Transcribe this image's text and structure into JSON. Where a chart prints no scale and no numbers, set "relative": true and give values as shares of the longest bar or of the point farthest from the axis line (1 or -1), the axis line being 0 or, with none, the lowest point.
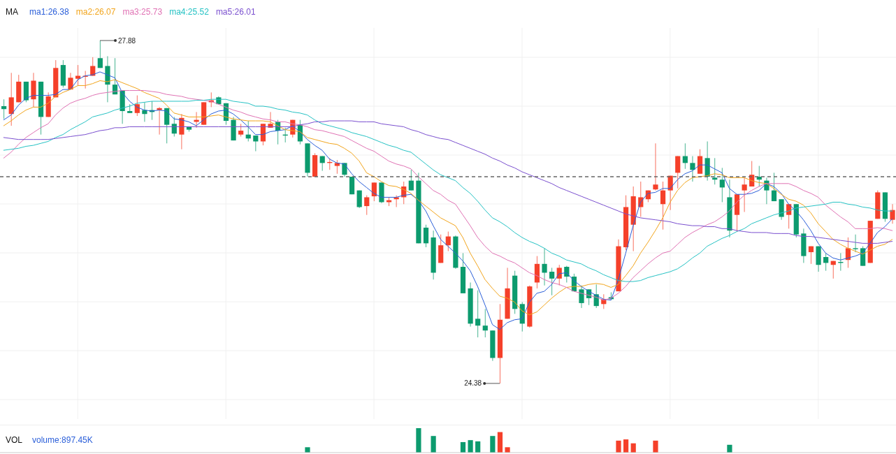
{
  "chart_data": [
    {
      "type": "candlestick",
      "legend_title": "MA",
      "legend": "top left",
      "grid": true,
      "tick_labels": false,
      "categories": [
        null,
        null,
        null,
        null,
        null,
        null,
        null,
        null,
        null,
        null,
        null,
        null,
        null,
        null,
        null,
        null,
        null,
        null,
        null,
        null,
        null,
        null,
        null,
        null,
        null,
        null,
        null,
        null,
        null,
        null,
        null,
        null,
        null,
        null,
        null,
        null,
        null,
        null,
        null,
        null,
        null,
        null,
        null,
        null,
        null,
        null,
        null,
        null,
        null,
        null,
        null,
        null,
        null,
        null,
        null,
        null,
        null,
        null,
        null,
        null,
        null,
        null,
        null,
        null,
        null,
        null,
        null,
        null,
        null,
        null,
        null,
        null,
        null,
        null,
        null,
        null,
        null,
        null,
        null,
        null,
        null,
        null,
        null,
        null,
        null,
        null,
        null,
        null,
        null,
        null,
        null,
        null,
        null,
        null,
        null,
        null,
        null,
        null,
        null,
        null,
        null,
        null,
        null,
        null,
        null,
        null,
        null,
        null,
        null,
        null,
        null,
        null,
        null,
        null,
        null,
        null,
        null,
        null,
        null,
        null,
        null
      ],
      "ohlc": [
        [
          27.21,
          27.28,
          27.08,
          27.18
        ],
        [
          27.13,
          27.55,
          27.01,
          27.3
        ],
        [
          27.25,
          27.53,
          27.25,
          27.46
        ],
        [
          27.46,
          27.46,
          27.25,
          27.27
        ],
        [
          27.28,
          27.55,
          27.2,
          27.47
        ],
        [
          27.46,
          27.46,
          26.92,
          27.1
        ],
        [
          27.1,
          27.35,
          27.1,
          27.31
        ],
        [
          27.3,
          27.68,
          27.3,
          27.6
        ],
        [
          27.63,
          27.68,
          27.4,
          27.42
        ],
        [
          27.38,
          27.55,
          27.38,
          27.5
        ],
        [
          27.49,
          27.63,
          27.42,
          27.52
        ],
        [
          27.51,
          27.57,
          27.39,
          27.52
        ],
        [
          27.52,
          27.71,
          27.52,
          27.62
        ],
        [
          27.7,
          27.88,
          27.6,
          27.6
        ],
        [
          27.62,
          27.72,
          27.25,
          27.43
        ],
        [
          27.43,
          27.7,
          27.33,
          27.33
        ],
        [
          27.37,
          27.37,
          27.03,
          27.16
        ],
        [
          27.16,
          27.23,
          27.14,
          27.14
        ],
        [
          27.14,
          27.32,
          27.11,
          27.23
        ],
        [
          27.17,
          27.25,
          27.05,
          27.13
        ],
        [
          27.17,
          27.26,
          27.07,
          27.15
        ],
        [
          27.17,
          27.2,
          26.92,
          27.19
        ],
        [
          27.19,
          27.19,
          26.83,
          27.02
        ],
        [
          27.03,
          27.1,
          26.9,
          26.93
        ],
        [
          26.92,
          27.13,
          26.77,
          27.09
        ],
        [
          27.0,
          27.0,
          26.95,
          26.97
        ],
        [
          27.05,
          27.15,
          26.99,
          27.07
        ],
        [
          27.02,
          27.25,
          27.02,
          27.25
        ],
        [
          27.25,
          27.35,
          27.2,
          27.27
        ],
        [
          27.3,
          27.31,
          27.23,
          27.23
        ],
        [
          27.24,
          27.24,
          27.02,
          27.06
        ],
        [
          27.07,
          27.1,
          26.86,
          26.86
        ],
        [
          26.92,
          27.03,
          26.9,
          26.96
        ],
        [
          26.92,
          27.06,
          26.85,
          26.88
        ],
        [
          26.91,
          26.91,
          26.75,
          26.85
        ],
        [
          26.85,
          27.03,
          26.81,
          27.03
        ],
        [
          26.99,
          27.15,
          26.99,
          27.03
        ],
        [
          27.05,
          27.07,
          26.82,
          26.96
        ],
        [
          26.92,
          26.99,
          26.84,
          26.91
        ],
        [
          26.92,
          27.07,
          26.89,
          27.07
        ],
        [
          27.02,
          27.07,
          26.82,
          26.85
        ],
        [
          26.83,
          26.83,
          26.49,
          26.53
        ],
        [
          26.49,
          26.73,
          26.49,
          26.71
        ],
        [
          26.7,
          26.7,
          26.55,
          26.63
        ],
        [
          26.63,
          26.68,
          26.56,
          26.64
        ],
        [
          26.6,
          26.66,
          26.52,
          26.63
        ],
        [
          26.63,
          26.63,
          26.49,
          26.51
        ],
        [
          26.49,
          26.49,
          26.31,
          26.31
        ],
        [
          26.35,
          26.35,
          26.17,
          26.18
        ],
        [
          26.19,
          26.3,
          26.1,
          26.28
        ],
        [
          26.29,
          26.43,
          26.24,
          26.43
        ],
        [
          26.43,
          26.43,
          26.22,
          26.23
        ],
        [
          26.23,
          26.28,
          26.19,
          26.25
        ],
        [
          26.26,
          26.3,
          26.18,
          26.28
        ],
        [
          26.28,
          26.44,
          26.21,
          26.39
        ],
        [
          26.45,
          26.56,
          26.35,
          26.35
        ],
        [
          26.45,
          26.53,
          25.81,
          25.81
        ],
        [
          25.97,
          26.0,
          25.77,
          25.81
        ],
        [
          25.87,
          25.94,
          25.44,
          25.51
        ],
        [
          25.61,
          25.9,
          25.61,
          25.79
        ],
        [
          25.79,
          25.93,
          25.73,
          25.88
        ],
        [
          25.88,
          25.89,
          25.55,
          25.56
        ],
        [
          25.57,
          25.71,
          25.3,
          25.3
        ],
        [
          25.35,
          25.41,
          24.96,
          24.99
        ],
        [
          25.04,
          25.33,
          24.85,
          24.97
        ],
        [
          24.97,
          25.14,
          24.85,
          24.92
        ],
        [
          24.92,
          24.92,
          24.61,
          24.64
        ],
        [
          24.64,
          25.19,
          24.38,
          25.03
        ],
        [
          25.04,
          25.56,
          25.04,
          25.35
        ],
        [
          25.48,
          25.53,
          25.09,
          25.14
        ],
        [
          25.19,
          25.21,
          24.91,
          24.99
        ],
        [
          24.96,
          25.38,
          24.95,
          25.37
        ],
        [
          25.41,
          25.68,
          25.35,
          25.6
        ],
        [
          25.6,
          25.76,
          25.38,
          25.51
        ],
        [
          25.52,
          25.56,
          25.28,
          25.45
        ],
        [
          25.45,
          25.59,
          25.38,
          25.56
        ],
        [
          25.57,
          25.58,
          25.41,
          25.47
        ],
        [
          25.47,
          25.5,
          25.32,
          25.32
        ],
        [
          25.34,
          25.38,
          25.15,
          25.2
        ],
        [
          25.34,
          25.34,
          25.18,
          25.25
        ],
        [
          25.29,
          25.39,
          25.15,
          25.17
        ],
        [
          25.19,
          25.29,
          25.14,
          25.24
        ],
        [
          25.26,
          25.31,
          25.23,
          25.24
        ],
        [
          25.32,
          25.85,
          25.32,
          25.78
        ],
        [
          25.77,
          26.3,
          25.74,
          26.18
        ],
        [
          26.0,
          26.39,
          25.73,
          26.29
        ],
        [
          26.18,
          26.44,
          26.08,
          26.28
        ],
        [
          26.26,
          26.35,
          26.23,
          26.35
        ],
        [
          26.36,
          26.83,
          26.35,
          26.41
        ],
        [
          26.21,
          26.44,
          25.95,
          26.35
        ],
        [
          26.35,
          26.5,
          26.15,
          26.5
        ],
        [
          26.53,
          26.7,
          26.37,
          26.7
        ],
        [
          26.7,
          26.83,
          26.57,
          26.63
        ],
        [
          26.63,
          26.7,
          26.44,
          26.56
        ],
        [
          26.52,
          26.77,
          26.52,
          26.7
        ],
        [
          26.68,
          26.85,
          26.45,
          26.49
        ],
        [
          26.48,
          26.68,
          26.41,
          26.46
        ],
        [
          26.46,
          26.58,
          26.23,
          26.38
        ],
        [
          26.28,
          26.46,
          25.87,
          25.94
        ],
        [
          26.1,
          26.31,
          25.93,
          26.31
        ],
        [
          26.35,
          26.48,
          26.13,
          26.41
        ],
        [
          26.39,
          26.65,
          26.39,
          26.51
        ],
        [
          26.49,
          26.6,
          26.39,
          26.46
        ],
        [
          26.45,
          26.48,
          26.21,
          26.35
        ],
        [
          26.35,
          26.53,
          26.24,
          26.24
        ],
        [
          26.26,
          26.26,
          26.05,
          26.08
        ],
        [
          26.1,
          26.21,
          25.96,
          26.21
        ],
        [
          26.21,
          26.21,
          25.87,
          25.9
        ],
        [
          25.91,
          25.96,
          25.61,
          25.68
        ],
        [
          25.72,
          25.78,
          25.6,
          25.78
        ],
        [
          25.78,
          25.78,
          25.52,
          25.59
        ],
        [
          25.67,
          25.71,
          25.53,
          25.61
        ],
        [
          25.59,
          25.63,
          25.45,
          25.63
        ],
        [
          25.62,
          25.71,
          25.53,
          25.61
        ],
        [
          25.64,
          25.87,
          25.56,
          25.76
        ],
        [
          25.76,
          25.9,
          25.72,
          25.75
        ],
        [
          25.76,
          25.78,
          25.58,
          25.58
        ],
        [
          25.61,
          26.04,
          25.61,
          26.04
        ],
        [
          26.06,
          26.35,
          26.06,
          26.33
        ],
        [
          26.33,
          26.33,
          26.03,
          26.06
        ],
        [
          26.05,
          26.21,
          26.01,
          26.15
        ]
      ],
      "colors": [
        "#0c9b6e",
        "#f5402a",
        "#f5402a",
        "#0c9b6e",
        "#f5402a",
        "#0c9b6e",
        "#f5402a",
        "#f5402a",
        "#0c9b6e",
        "#f5402a",
        "#f5402a",
        "#f5402a",
        "#f5402a",
        "#0c9b6e",
        "#0c9b6e",
        "#0c9b6e",
        "#0c9b6e",
        "#0c9b6e",
        "#f5402a",
        "#0c9b6e",
        "#0c9b6e",
        "#f5402a",
        "#0c9b6e",
        "#0c9b6e",
        "#f5402a",
        "#0c9b6e",
        "#f5402a",
        "#f5402a",
        "#f5402a",
        "#0c9b6e",
        "#0c9b6e",
        "#0c9b6e",
        "#f5402a",
        "#0c9b6e",
        "#0c9b6e",
        "#f5402a",
        "#f5402a",
        "#0c9b6e",
        "#0c9b6e",
        "#f5402a",
        "#0c9b6e",
        "#0c9b6e",
        "#f5402a",
        "#0c9b6e",
        "#f5402a",
        "#f5402a",
        "#0c9b6e",
        "#0c9b6e",
        "#0c9b6e",
        "#f5402a",
        "#f5402a",
        "#0c9b6e",
        "#f5402a",
        "#f5402a",
        "#f5402a",
        "#0c9b6e",
        "#0c9b6e",
        "#0c9b6e",
        "#0c9b6e",
        "#f5402a",
        "#f5402a",
        "#0c9b6e",
        "#0c9b6e",
        "#0c9b6e",
        "#0c9b6e",
        "#0c9b6e",
        "#0c9b6e",
        "#f5402a",
        "#f5402a",
        "#0c9b6e",
        "#0c9b6e",
        "#f5402a",
        "#f5402a",
        "#0c9b6e",
        "#0c9b6e",
        "#f5402a",
        "#0c9b6e",
        "#0c9b6e",
        "#0c9b6e",
        "#0c9b6e",
        "#0c9b6e",
        "#f5402a",
        "#0c9b6e",
        "#f5402a",
        "#f5402a",
        "#f5402a",
        "#f5402a",
        "#f5402a",
        "#f5402a",
        "#f5402a",
        "#f5402a",
        "#f5402a",
        "#0c9b6e",
        "#0c9b6e",
        "#f5402a",
        "#0c9b6e",
        "#0c9b6e",
        "#0c9b6e",
        "#0c9b6e",
        "#f5402a",
        "#f5402a",
        "#f5402a",
        "#0c9b6e",
        "#0c9b6e",
        "#0c9b6e",
        "#0c9b6e",
        "#f5402a",
        "#0c9b6e",
        "#0c9b6e",
        "#f5402a",
        "#0c9b6e",
        "#0c9b6e",
        "#f5402a",
        "#0c9b6e",
        "#f5402a",
        "#0c9b6e",
        "#0c9b6e",
        "#f5402a",
        "#f5402a",
        "#0c9b6e",
        "#f5402a"
      ],
      "series": [
        {
          "type": "line",
          "name": "ma1:26.38",
          "color": "#2b5fd9",
          "values": [
            27.07,
            27.12,
            27.22,
            27.29,
            27.32,
            27.32,
            27.32,
            27.33,
            27.38,
            27.38,
            27.48,
            27.52,
            27.53,
            27.56,
            27.53,
            27.5,
            27.35,
            27.26,
            27.2,
            27.17,
            27.16,
            27.17,
            27.16,
            27.08,
            27.07,
            27.05,
            27.01,
            27.07,
            27.13,
            27.16,
            27.17,
            27.13,
            27.07,
            27.0,
            26.92,
            26.92,
            26.95,
            26.96,
            26.97,
            27.01,
            26.95,
            26.87,
            26.81,
            26.76,
            26.67,
            26.63,
            26.62,
            26.52,
            26.44,
            26.38,
            26.32,
            26.28,
            26.28,
            26.28,
            26.3,
            26.31,
            26.25,
            26.14,
            25.99,
            25.85,
            25.78,
            25.71,
            25.63,
            25.53,
            25.37,
            25.18,
            24.98,
            24.93,
            25.0,
            25.03,
            25.04,
            25.21,
            25.3,
            25.32,
            25.39,
            25.5,
            25.51,
            25.43,
            25.37,
            25.32,
            25.28,
            25.24,
            25.23,
            25.44,
            25.71,
            25.99,
            26.23,
            26.32,
            26.33,
            26.37,
            26.37,
            26.46,
            26.52,
            26.55,
            26.61,
            26.61,
            26.57,
            26.53,
            26.37,
            26.31,
            26.31,
            26.32,
            26.35,
            26.42,
            26.39,
            26.32,
            26.21,
            26.14,
            26.05,
            25.94,
            25.81,
            25.71,
            25.66,
            25.64,
            25.66,
            25.68,
            25.71,
            25.81,
            25.92,
            25.98,
            26.06
          ]
        },
        {
          "type": "line",
          "name": "ma2:26.07",
          "color": "#f2a51c",
          "values": [
            27.01,
            27.06,
            27.12,
            27.17,
            27.2,
            27.2,
            27.24,
            27.31,
            27.35,
            27.38,
            27.42,
            27.42,
            27.44,
            27.47,
            27.46,
            27.48,
            27.45,
            27.42,
            27.39,
            27.35,
            27.32,
            27.29,
            27.22,
            27.14,
            27.12,
            27.1,
            27.1,
            27.1,
            27.11,
            27.12,
            27.1,
            27.08,
            27.07,
            27.06,
            27.06,
            27.06,
            27.05,
            27.01,
            26.97,
            26.96,
            26.95,
            26.89,
            26.87,
            26.85,
            26.83,
            26.82,
            26.78,
            26.73,
            26.65,
            26.53,
            26.49,
            26.44,
            26.4,
            26.39,
            26.36,
            26.32,
            26.25,
            26.19,
            26.13,
            26.07,
            26.03,
            25.99,
            25.87,
            25.71,
            25.58,
            25.44,
            25.35,
            25.27,
            25.25,
            25.21,
            25.12,
            25.08,
            25.11,
            25.18,
            25.25,
            25.31,
            25.36,
            25.37,
            25.37,
            25.39,
            25.4,
            25.39,
            25.36,
            25.39,
            25.48,
            25.58,
            25.71,
            25.82,
            25.94,
            26.07,
            26.23,
            26.35,
            26.43,
            26.48,
            26.49,
            26.5,
            26.52,
            26.51,
            26.48,
            26.48,
            26.48,
            26.45,
            26.43,
            26.42,
            26.37,
            26.31,
            26.26,
            26.24,
            26.2,
            26.12,
            26.01,
            25.93,
            25.85,
            25.8,
            25.76,
            25.73,
            25.7,
            25.74,
            25.78,
            25.8,
            25.85
          ]
        },
        {
          "type": "line",
          "name": "ma3:25.73",
          "color": "#e072b4",
          "values": [
            26.68,
            26.74,
            26.82,
            26.89,
            26.94,
            26.99,
            27.03,
            27.12,
            27.19,
            27.24,
            27.27,
            27.29,
            27.32,
            27.34,
            27.35,
            27.36,
            27.37,
            27.37,
            27.37,
            27.37,
            27.36,
            27.35,
            27.33,
            27.32,
            27.31,
            27.29,
            27.28,
            27.27,
            27.26,
            27.23,
            27.2,
            27.17,
            27.15,
            27.12,
            27.1,
            27.08,
            27.07,
            27.05,
            27.05,
            27.03,
            27.02,
            27.0,
            26.97,
            26.96,
            26.94,
            26.92,
            26.9,
            26.86,
            26.82,
            26.78,
            26.75,
            26.7,
            26.65,
            26.62,
            26.6,
            26.57,
            26.49,
            26.42,
            26.35,
            26.31,
            26.25,
            26.21,
            26.1,
            25.99,
            25.87,
            25.78,
            25.71,
            25.68,
            25.64,
            25.61,
            25.56,
            25.51,
            25.48,
            25.44,
            25.41,
            25.39,
            25.36,
            25.32,
            25.3,
            25.28,
            25.26,
            25.23,
            25.25,
            25.3,
            25.37,
            25.46,
            25.53,
            25.6,
            25.66,
            25.71,
            25.73,
            25.8,
            25.87,
            25.92,
            25.96,
            26.0,
            26.03,
            26.08,
            26.14,
            26.23,
            26.3,
            26.35,
            26.39,
            26.42,
            26.42,
            26.42,
            26.42,
            26.39,
            26.35,
            26.32,
            26.28,
            26.2,
            26.14,
            26.08,
            26.03,
            25.96,
            25.96,
            25.96,
            25.97,
            25.96,
            25.94
          ]
        },
        {
          "type": "line",
          "name": "ma4:25.52",
          "color": "#25c2c4",
          "values": [
            26.76,
            26.77,
            26.78,
            26.8,
            26.81,
            26.83,
            26.85,
            26.89,
            26.92,
            26.97,
            27.01,
            27.05,
            27.1,
            27.12,
            27.14,
            27.17,
            27.19,
            27.21,
            27.24,
            27.25,
            27.26,
            27.26,
            27.26,
            27.26,
            27.26,
            27.26,
            27.27,
            27.27,
            27.28,
            27.28,
            27.28,
            27.26,
            27.25,
            27.24,
            27.21,
            27.21,
            27.2,
            27.18,
            27.17,
            27.15,
            27.14,
            27.12,
            27.07,
            27.03,
            27.01,
            26.99,
            26.97,
            26.94,
            26.92,
            26.9,
            26.87,
            26.84,
            26.81,
            26.79,
            26.76,
            26.74,
            26.68,
            26.62,
            26.56,
            26.51,
            26.48,
            26.45,
            26.38,
            26.32,
            26.24,
            26.15,
            26.07,
            26.03,
            25.98,
            25.92,
            25.87,
            25.83,
            25.8,
            25.76,
            25.71,
            25.68,
            25.64,
            25.62,
            25.6,
            25.56,
            25.53,
            25.49,
            25.46,
            25.43,
            25.42,
            25.42,
            25.43,
            25.46,
            25.48,
            25.5,
            25.52,
            25.55,
            25.6,
            25.66,
            25.71,
            25.78,
            25.82,
            25.86,
            25.89,
            25.93,
            25.96,
            26.01,
            26.04,
            26.07,
            26.1,
            26.12,
            26.14,
            26.17,
            26.18,
            26.19,
            26.2,
            26.21,
            26.23,
            26.23,
            26.21,
            26.2,
            26.18,
            26.17,
            26.15,
            26.14,
            26.14
          ]
        },
        {
          "type": "line",
          "name": "ma5:26.01",
          "color": "#7a4fcf",
          "values": [
            26.89,
            26.88,
            26.87,
            26.87,
            26.87,
            26.87,
            26.87,
            26.88,
            26.89,
            26.9,
            26.91,
            26.92,
            26.94,
            26.96,
            26.97,
            26.99,
            26.99,
            27.0,
            27.0,
            27.0,
            27.0,
            27.0,
            27.0,
            27.0,
            27.0,
            27.0,
            27.0,
            27.0,
            27.0,
            27.0,
            27.0,
            27.0,
            27.0,
            27.0,
            27.0,
            27.0,
            27.0,
            27.0,
            27.0,
            27.0,
            27.02,
            27.03,
            27.05,
            27.05,
            27.06,
            27.06,
            27.06,
            27.06,
            27.05,
            27.05,
            27.05,
            27.03,
            27.02,
            27.01,
            27.0,
            26.97,
            26.95,
            26.92,
            26.9,
            26.88,
            26.87,
            26.84,
            26.81,
            26.78,
            26.75,
            26.72,
            26.68,
            26.65,
            26.61,
            26.58,
            26.54,
            26.51,
            26.48,
            26.45,
            26.42,
            26.38,
            26.35,
            26.32,
            26.29,
            26.26,
            26.23,
            26.2,
            26.17,
            26.14,
            26.11,
            26.09,
            26.07,
            26.06,
            26.05,
            26.04,
            26.03,
            26.01,
            26.0,
            25.99,
            25.99,
            25.98,
            25.98,
            25.96,
            25.96,
            25.94,
            25.93,
            25.92,
            25.92,
            25.92,
            25.91,
            25.91,
            25.91,
            25.89,
            25.88,
            25.88,
            25.87,
            25.86,
            25.85,
            25.84,
            25.83,
            25.82,
            25.81,
            25.81,
            25.81,
            25.82,
            25.83
          ]
        }
      ],
      "ref_lines": [
        {
          "axis": "y",
          "value": 26.49,
          "line_style": "dashed",
          "color": "#666666"
        }
      ],
      "annotations": [
        "27.88",
        "24.38"
      ]
    },
    {
      "type": "bar",
      "title": "VOL",
      "relative": true,
      "tick_labels": false,
      "categories": [
        null,
        null,
        null,
        null,
        null,
        null,
        null,
        null,
        null,
        null,
        null,
        null,
        null,
        null,
        null,
        null,
        null,
        null,
        null,
        null,
        null,
        null,
        null,
        null,
        null,
        null,
        null,
        null,
        null,
        null,
        null,
        null,
        null,
        null,
        null,
        null,
        null,
        null,
        null,
        null,
        null,
        null,
        null,
        null,
        null,
        null,
        null,
        null,
        null,
        null,
        null,
        null,
        null,
        null,
        null,
        null,
        null,
        null,
        null,
        null,
        null,
        null,
        null,
        null,
        null,
        null,
        null,
        null,
        null,
        null,
        null,
        null,
        null,
        null,
        null,
        null,
        null,
        null,
        null,
        null,
        null,
        null,
        null,
        null,
        null,
        null,
        null,
        null,
        null,
        null,
        null,
        null,
        null,
        null,
        null,
        null,
        null,
        null,
        null,
        null,
        null,
        null,
        null,
        null,
        null,
        null,
        null,
        null,
        null,
        null,
        null,
        null,
        null,
        null,
        null,
        null,
        null,
        null,
        null,
        null,
        null
      ],
      "series": [
        {
          "name": "volume:897.45K",
          "values": [
            null,
            null,
            null,
            null,
            null,
            null,
            null,
            null,
            null,
            null,
            null,
            null,
            null,
            null,
            null,
            null,
            null,
            null,
            null,
            null,
            null,
            null,
            null,
            null,
            null,
            null,
            null,
            null,
            null,
            null,
            null,
            null,
            null,
            null,
            null,
            null,
            null,
            null,
            null,
            null,
            null,
            0.22,
            null,
            null,
            null,
            null,
            null,
            null,
            null,
            null,
            null,
            null,
            null,
            null,
            null,
            null,
            1,
            null,
            0.68,
            null,
            null,
            null,
            0.43,
            0.51,
            0.46,
            null,
            0.68,
            0.84,
            0.22,
            null,
            null,
            null,
            null,
            null,
            null,
            null,
            null,
            null,
            null,
            null,
            null,
            null,
            null,
            0.49,
            0.54,
            0.38,
            null,
            null,
            0.49,
            null,
            null,
            null,
            null,
            null,
            null,
            null,
            null,
            null,
            0.32,
            null,
            null,
            null,
            null,
            null,
            null,
            null,
            null,
            null,
            null,
            null,
            null,
            null,
            null,
            null,
            null,
            null,
            null,
            null,
            null,
            null,
            null
          ],
          "colors": [
            null,
            null,
            null,
            null,
            null,
            null,
            null,
            null,
            null,
            null,
            null,
            null,
            null,
            null,
            null,
            null,
            null,
            null,
            null,
            null,
            null,
            null,
            null,
            null,
            null,
            null,
            null,
            null,
            null,
            null,
            null,
            null,
            null,
            null,
            null,
            null,
            null,
            null,
            null,
            null,
            null,
            "#0c9b6e",
            null,
            null,
            null,
            null,
            null,
            null,
            null,
            null,
            null,
            null,
            null,
            null,
            null,
            null,
            "#0c9b6e",
            null,
            "#0c9b6e",
            null,
            null,
            null,
            "#0c9b6e",
            "#0c9b6e",
            "#0c9b6e",
            null,
            "#0c9b6e",
            "#f5402a",
            "#f5402a",
            null,
            null,
            null,
            null,
            null,
            null,
            null,
            null,
            null,
            null,
            null,
            null,
            null,
            null,
            "#f5402a",
            "#f5402a",
            "#f5402a",
            null,
            null,
            "#f5402a",
            null,
            null,
            null,
            null,
            null,
            null,
            null,
            null,
            null,
            "#0c9b6e",
            null,
            null,
            null,
            null,
            null,
            null,
            null,
            null,
            null,
            null,
            null,
            null,
            null,
            null,
            null,
            null,
            null,
            null,
            null,
            null,
            null,
            null
          ]
        }
      ]
    }
  ]
}
